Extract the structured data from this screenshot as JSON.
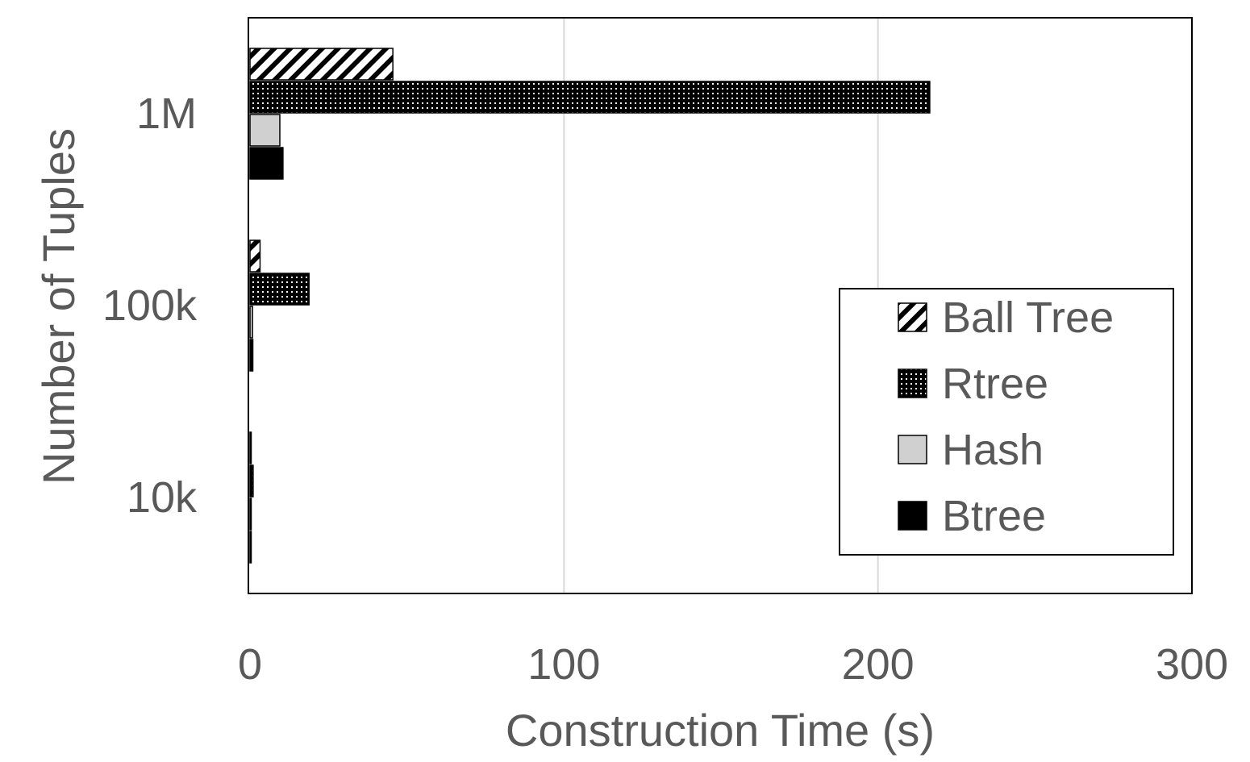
{
  "chart_data": {
    "type": "bar",
    "orientation": "horizontal",
    "xlabel": "Construction Time (s)",
    "ylabel": "Number of Tuples",
    "xlim": [
      0,
      300
    ],
    "xticks": [
      0,
      100,
      200,
      300
    ],
    "grid": "vertical",
    "categories": [
      "1M",
      "100k",
      "10k"
    ],
    "series": [
      {
        "name": "Ball Tree",
        "values": [
          45.5,
          3.2,
          0.3
        ],
        "pattern": "diagonal-hatch"
      },
      {
        "name": "Rtree",
        "values": [
          216.5,
          18.8,
          1.0
        ],
        "pattern": "dense-dots"
      },
      {
        "name": "Hash",
        "values": [
          9.5,
          0.8,
          0.1
        ],
        "pattern": "solid-light-gray"
      },
      {
        "name": "Btree",
        "values": [
          10.5,
          0.9,
          0.1
        ],
        "pattern": "solid-black"
      }
    ],
    "legend_position": "bottom-right",
    "colors": {
      "text": "#595959",
      "gridline": "#d9d9d9",
      "hash_fill": "#d0d0d0",
      "btree_fill": "#000000"
    }
  }
}
